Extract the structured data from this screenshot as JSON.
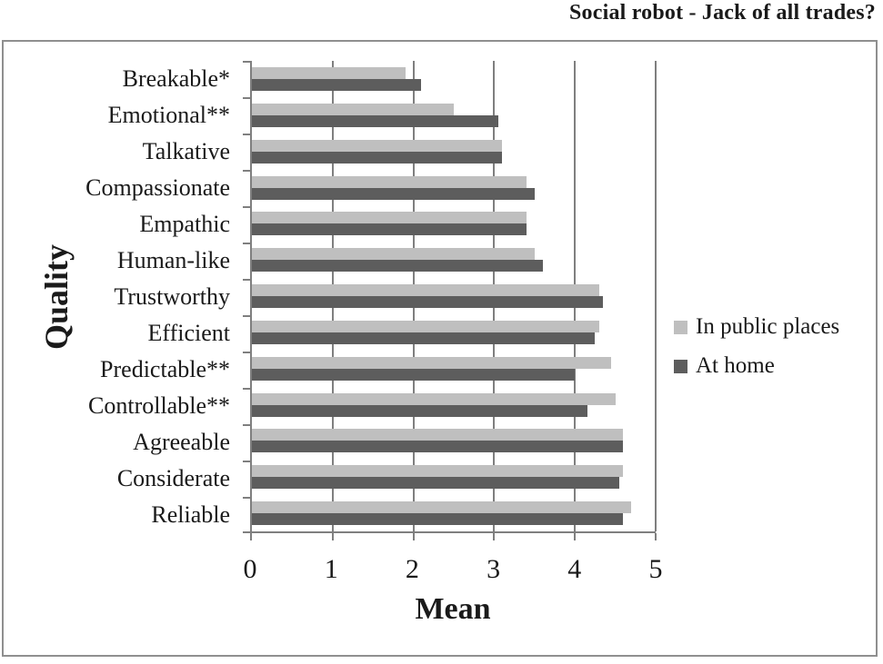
{
  "title": "Social robot - Jack of all trades?",
  "chart_data": {
    "type": "bar",
    "orientation": "horizontal",
    "title": "Social robot - Jack of all trades?",
    "xlabel": "Mean",
    "ylabel": "Quality",
    "xlim": [
      0,
      5
    ],
    "xticks": [
      0,
      1,
      2,
      3,
      4,
      5
    ],
    "grid": "vertical-gridlines-on",
    "legend_position": "right",
    "categories": [
      "Breakable*",
      "Emotional**",
      "Talkative",
      "Compassionate",
      "Empathic",
      "Human-like",
      "Trustworthy",
      "Efficient",
      "Predictable**",
      "Controllable**",
      "Agreeable",
      "Considerate",
      "Reliable"
    ],
    "series": [
      {
        "name": "In public places",
        "color": "#bfbfbf",
        "values": [
          1.9,
          2.5,
          3.1,
          3.4,
          3.4,
          3.5,
          4.3,
          4.3,
          4.45,
          4.5,
          4.6,
          4.6,
          4.7
        ]
      },
      {
        "name": "At home",
        "color": "#5d5d5d",
        "values": [
          2.1,
          3.05,
          3.1,
          3.5,
          3.4,
          3.6,
          4.35,
          4.25,
          4.0,
          4.15,
          4.6,
          4.55,
          4.6
        ]
      }
    ]
  },
  "colors": {
    "bar_light": "#bfbfbf",
    "bar_dark": "#5d5d5d",
    "axis": "#7f7f7f",
    "border": "#8f8f8f",
    "text": "#1a1a1a",
    "background": "#ffffff"
  }
}
